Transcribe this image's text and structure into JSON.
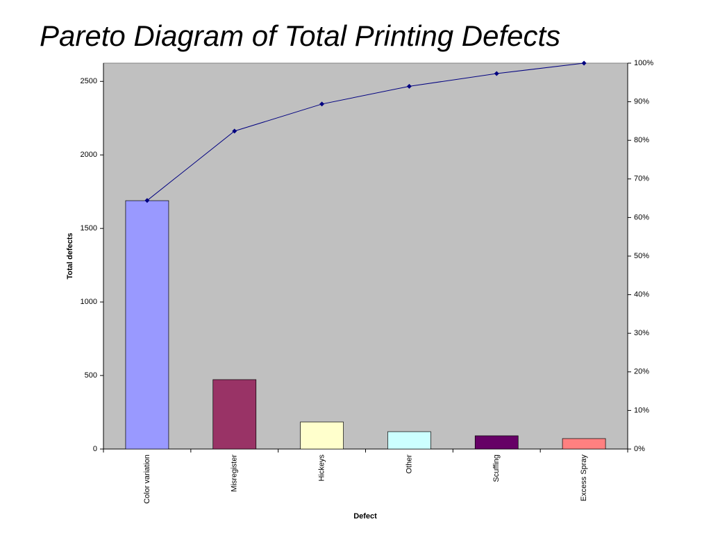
{
  "chart_data": {
    "type": "bar",
    "title": "Pareto Diagram of Total Printing Defects",
    "x_label": "Defect",
    "y_label": "Total defects",
    "categories": [
      "Color variation",
      "Misregister",
      "Hickeys",
      "Other",
      "Scuffing",
      "Excess Spray"
    ],
    "series": [
      {
        "type": "bar",
        "colors": [
          "#9999ff",
          "#993366",
          "#ffffcc",
          "#ccffff",
          "#660066",
          "#ff8080"
        ],
        "values": [
          1689,
          472,
          184,
          118,
          90,
          71
        ]
      },
      {
        "type": "line",
        "color": "#000080",
        "axis": "y2",
        "values": [
          64.4,
          82.4,
          89.4,
          94.0,
          97.3,
          100
        ]
      }
    ],
    "ylim": [
      0,
      2624
    ],
    "yticks": [
      0,
      500,
      1000,
      1500,
      2000,
      2500
    ],
    "y2lim": [
      0,
      100
    ],
    "y2ticks": [
      {
        "value": 0,
        "label": "0%"
      },
      {
        "value": 10,
        "label": "10%"
      },
      {
        "value": 20,
        "label": "20%"
      },
      {
        "value": 30,
        "label": "30%"
      },
      {
        "value": 40,
        "label": "40%"
      },
      {
        "value": 50,
        "label": "50%"
      },
      {
        "value": 60,
        "label": "60%"
      },
      {
        "value": 70,
        "label": "70%"
      },
      {
        "value": 80,
        "label": "80%"
      },
      {
        "value": 90,
        "label": "90%"
      },
      {
        "value": 100,
        "label": "100%"
      }
    ],
    "plot_background": "#c0c0c0"
  }
}
